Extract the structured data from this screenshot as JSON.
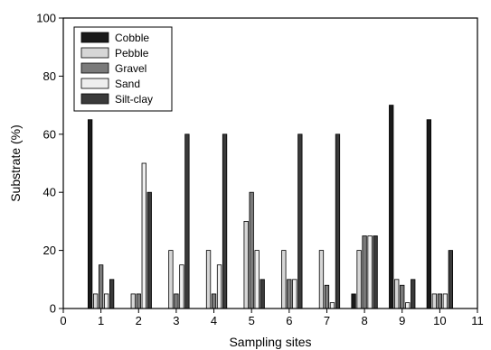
{
  "chart_data": {
    "type": "bar",
    "xlabel": "Sampling sites",
    "ylabel": "Substrate (%)",
    "xlim": [
      0,
      11
    ],
    "ylim": [
      0,
      100
    ],
    "x_ticks": [
      0,
      1,
      2,
      3,
      4,
      5,
      6,
      7,
      8,
      9,
      10,
      11
    ],
    "y_ticks": [
      0,
      20,
      40,
      60,
      80,
      100
    ],
    "categories": [
      "1",
      "2",
      "3",
      "4",
      "5",
      "6",
      "7",
      "8",
      "9",
      "10"
    ],
    "legend_position": "top-left",
    "grid": false,
    "series": [
      {
        "name": "Cobble",
        "color": "#1a1a1a",
        "values": [
          65,
          0,
          0,
          0,
          0,
          0,
          0,
          5,
          70,
          65
        ]
      },
      {
        "name": "Pebble",
        "color": "#d6d6d6",
        "values": [
          5,
          5,
          20,
          20,
          30,
          20,
          20,
          20,
          10,
          5
        ]
      },
      {
        "name": "Gravel",
        "color": "#7a7a7a",
        "values": [
          15,
          5,
          5,
          5,
          40,
          10,
          8,
          25,
          8,
          5
        ]
      },
      {
        "name": "Sand",
        "color": "#eeeeee",
        "values": [
          5,
          50,
          15,
          15,
          20,
          10,
          2,
          25,
          2,
          5
        ]
      },
      {
        "name": "Silt-clay",
        "color": "#3a3a3a",
        "values": [
          10,
          40,
          60,
          60,
          10,
          60,
          60,
          25,
          10,
          20
        ]
      }
    ]
  }
}
